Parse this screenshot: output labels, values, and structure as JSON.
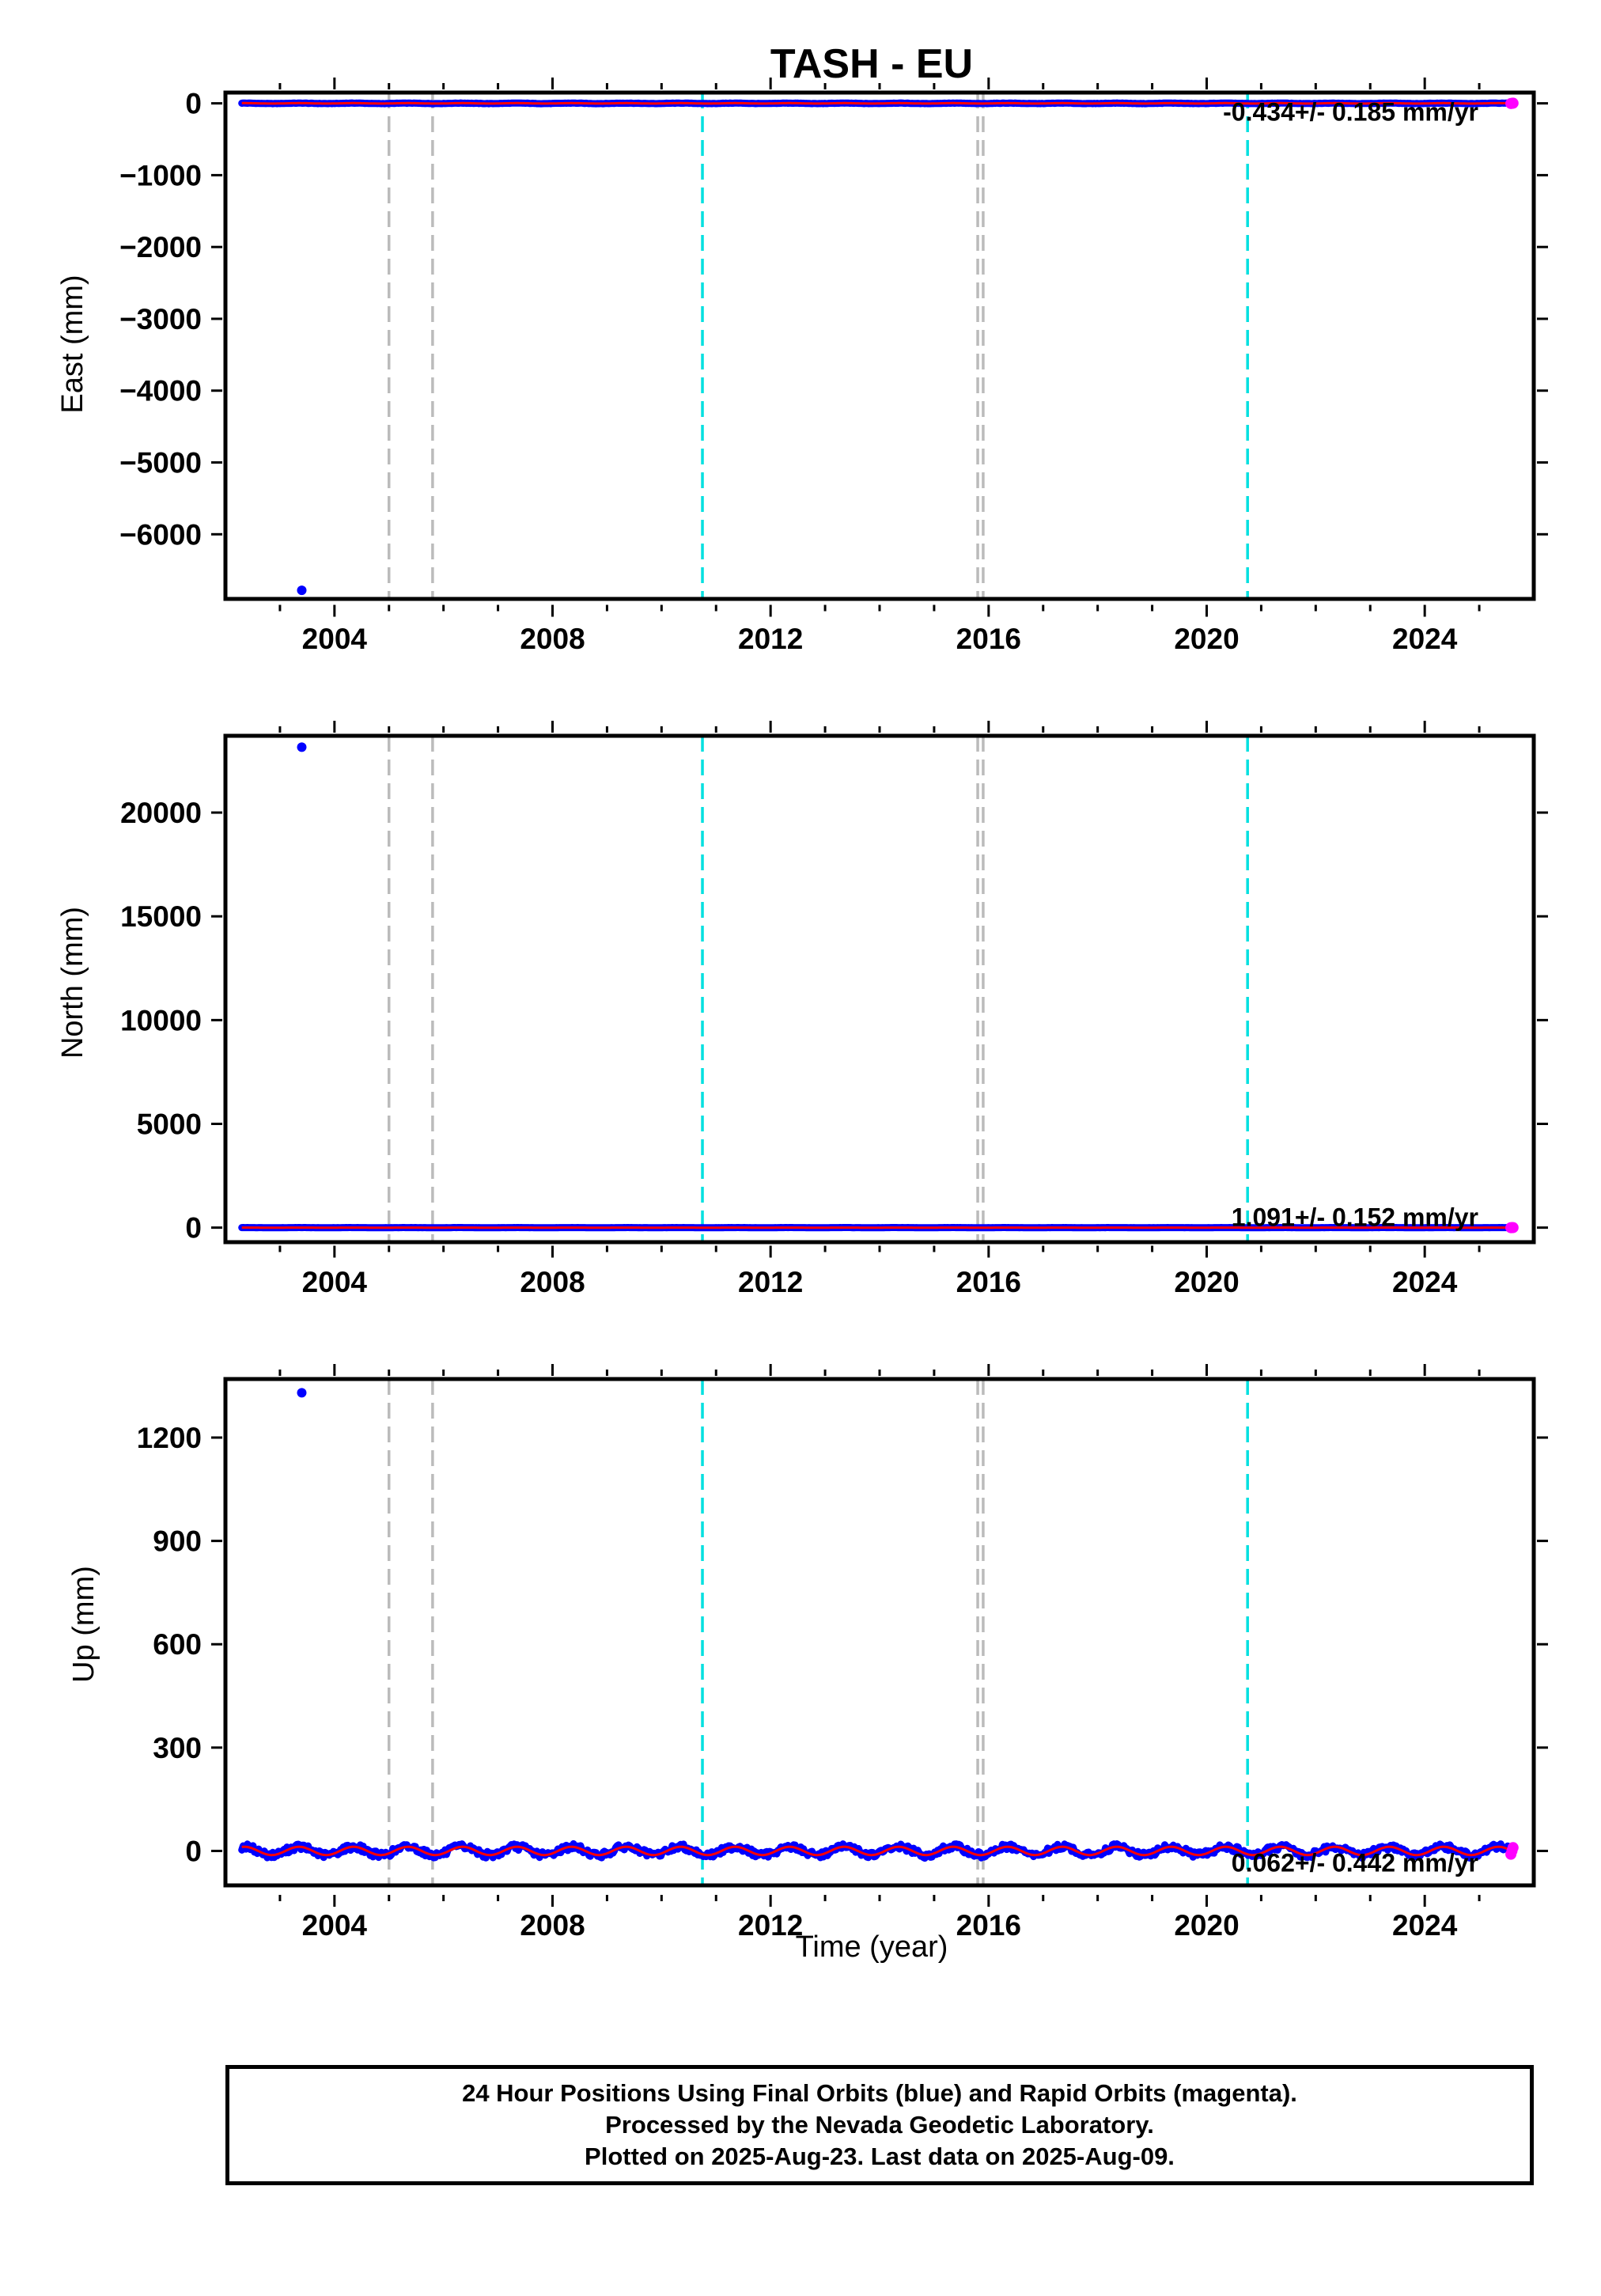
{
  "chart_data": {
    "title": "TASH - EU",
    "type": "scatter",
    "xlabel": "Time (year)",
    "xlim": [
      2002.0,
      2026.0
    ],
    "xticks": [
      2004,
      2008,
      2012,
      2016,
      2020,
      2024
    ],
    "equipment_changes_gray": [
      2005.0,
      2005.8,
      2015.8,
      2015.9
    ],
    "earthquakes_cyan": [
      2010.75,
      2020.75
    ],
    "colors": {
      "final_orbits": "#0000ff",
      "rapid_orbits": "#ff00ff",
      "model_fit": "#ff0000",
      "equipment_line": "#bbbbbb",
      "earthquake_line": "#00e0e0"
    },
    "panels": [
      {
        "component": "east",
        "ylabel": "East (mm)",
        "ylim": [
          -6900,
          150
        ],
        "yticks": [
          0,
          -1000,
          -2000,
          -3000,
          -4000,
          -5000,
          -6000
        ],
        "rate_label": "-0.434+/- 0.185 mm/yr",
        "amplitude_mm": 3,
        "outliers": [
          {
            "x": 2003.4,
            "y": -6780
          }
        ],
        "series_range": [
          2002.3,
          2025.6
        ]
      },
      {
        "component": "north",
        "ylabel": "North (mm)",
        "ylim": [
          -700,
          23700
        ],
        "yticks": [
          0,
          5000,
          10000,
          15000,
          20000
        ],
        "rate_label": "1.091+/- 0.152 mm/yr",
        "amplitude_mm": 3,
        "outliers": [
          {
            "x": 2003.4,
            "y": 23150
          }
        ],
        "series_range": [
          2002.3,
          2025.6
        ]
      },
      {
        "component": "up",
        "ylabel": "Up (mm)",
        "ylim": [
          -100,
          1370
        ],
        "yticks": [
          0,
          300,
          600,
          900,
          1200
        ],
        "rate_label": "0.062+/- 0.442 mm/yr",
        "amplitude_mm": 12,
        "outliers": [
          {
            "x": 2003.4,
            "y": 1330
          }
        ],
        "series_range": [
          2002.3,
          2025.6
        ]
      }
    ]
  },
  "caption": {
    "line1": "24 Hour Positions Using Final Orbits (blue) and Rapid Orbits (magenta).",
    "line2": "Processed by the Nevada Geodetic Laboratory.",
    "line3": "Plotted on 2025-Aug-23. Last data on 2025-Aug-09."
  }
}
